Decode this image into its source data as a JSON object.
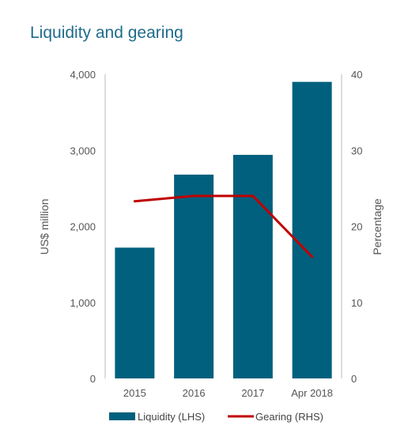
{
  "chart_data": {
    "type": "bar",
    "title": "Liquidity and gearing",
    "categories": [
      "2015",
      "2016",
      "2017",
      "Apr 2018"
    ],
    "series": [
      {
        "name": "Liquidity (LHS)",
        "type": "bar",
        "axis": "left",
        "values": [
          1720,
          2680,
          2940,
          3900
        ]
      },
      {
        "name": "Gearing (RHS)",
        "type": "line",
        "axis": "right",
        "values": [
          23.3,
          24.0,
          24.0,
          16.0
        ]
      }
    ],
    "ylabel_left": "US$ million",
    "ylabel_right": "Percentage",
    "ylim_left": [
      0,
      4000
    ],
    "ylim_right": [
      0,
      40
    ],
    "yticks_left": [
      "0",
      "1,000",
      "2,000",
      "3,000",
      "4,000"
    ],
    "yticks_right": [
      "0",
      "10",
      "20",
      "30",
      "40"
    ],
    "grid": false,
    "legend_position": "bottom",
    "colors": {
      "bar": "#00607d",
      "line": "#c00000",
      "axis": "#bbbbbb",
      "title": "#1f6c8c"
    }
  }
}
